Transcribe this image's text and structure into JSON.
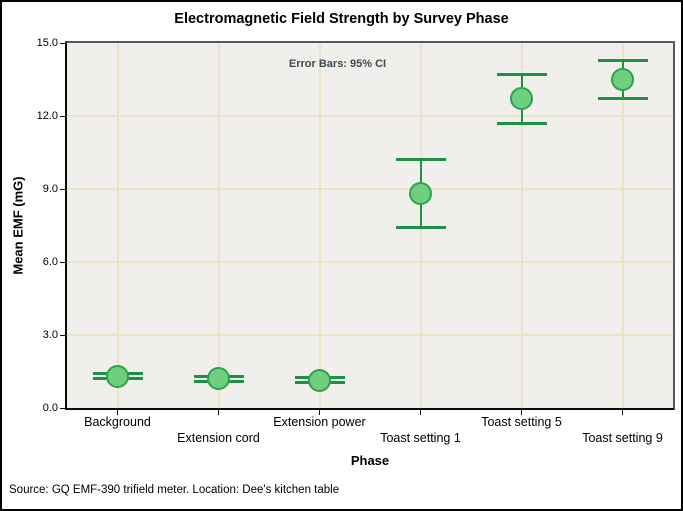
{
  "chart_data": {
    "type": "errorbar",
    "title": "Electromagnetic Field Strength by Survey Phase",
    "xlabel": "Phase",
    "ylabel": "Mean EMF (mG)",
    "annotation": "Error Bars: 95% CI",
    "footnote": "Source: GQ EMF-390 trifield meter. Location: Dee's kitchen table",
    "categories": [
      "Background",
      "Extension cord",
      "Extension power",
      "Toast setting 1",
      "Toast setting 5",
      "Toast setting 9"
    ],
    "label_rows": [
      0,
      1,
      0,
      1,
      0,
      1
    ],
    "series": [
      {
        "name": "Mean EMF (mG)",
        "means": [
          1.3,
          1.2,
          1.15,
          8.8,
          12.7,
          13.5
        ],
        "ci_low": [
          1.2,
          1.1,
          1.05,
          7.4,
          11.7,
          12.7
        ],
        "ci_high": [
          1.4,
          1.3,
          1.25,
          10.2,
          13.7,
          14.3
        ]
      }
    ],
    "ci_level": "95% CI",
    "ylim": [
      0,
      15
    ],
    "ytick_values": [
      0,
      3,
      6,
      9,
      12,
      15
    ],
    "ytick_labels": [
      "0.0",
      "3.0",
      "6.0",
      "9.0",
      "12.0",
      "15.0"
    ],
    "grid": true,
    "legend": false,
    "colors": {
      "marker_fill": "#70ce80",
      "marker_border": "#2ea14f",
      "error_bar": "#1d9144",
      "plot_bg": "#f0efec",
      "gridline": "#e8e4c6",
      "annotation_text": "#3d4a52",
      "axis": "#0a0a0a",
      "plot_border_top_right": "#59595b"
    }
  }
}
